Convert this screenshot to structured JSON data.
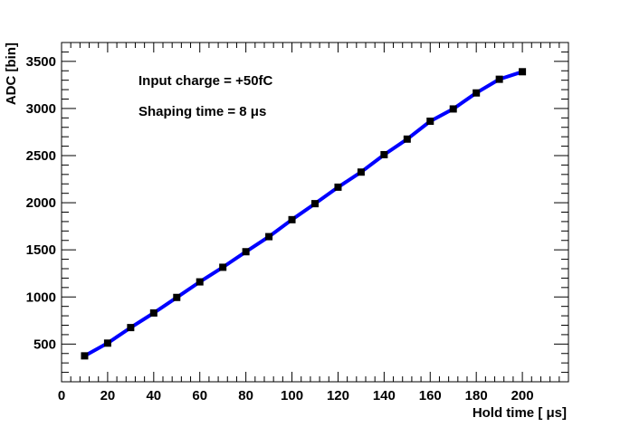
{
  "chart_data": {
    "type": "line",
    "xlabel": "Hold time [ μs]",
    "ylabel": "ADC [bin]",
    "xlim": [
      0,
      220
    ],
    "ylim": [
      100,
      3700
    ],
    "x_ticks": [
      "0",
      "20",
      "40",
      "60",
      "80",
      "100",
      "120",
      "140",
      "160",
      "180",
      "200"
    ],
    "y_ticks": [
      "500",
      "1000",
      "1500",
      "2000",
      "2500",
      "3000",
      "3500"
    ],
    "grid": false,
    "annotations": [
      "Input charge  = +50fC",
      "Shaping time = 8  μs"
    ],
    "series": [
      {
        "line_color": "#0000ff",
        "marker_color": "#000000",
        "x": [
          10,
          20,
          30,
          40,
          50,
          60,
          70,
          80,
          90,
          100,
          110,
          120,
          130,
          140,
          150,
          160,
          170,
          180,
          190,
          200
        ],
        "y": [
          375,
          510,
          675,
          830,
          995,
          1160,
          1315,
          1480,
          1640,
          1820,
          1990,
          2165,
          2325,
          2510,
          2675,
          2865,
          2995,
          3165,
          3310,
          3390
        ]
      }
    ]
  }
}
